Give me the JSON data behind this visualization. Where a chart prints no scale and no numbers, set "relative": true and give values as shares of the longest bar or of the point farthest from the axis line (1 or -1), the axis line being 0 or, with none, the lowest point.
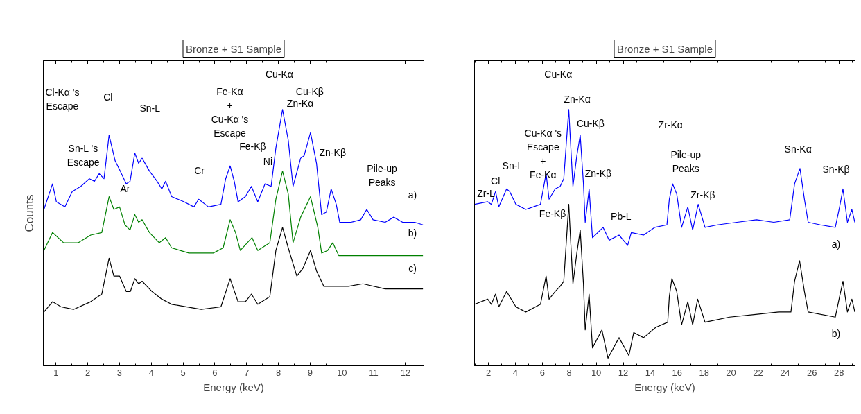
{
  "chart_data": [
    {
      "type": "line",
      "title": "Bronze + S1 Sample",
      "xlabel": "Energy (keV)",
      "ylabel": "Counts",
      "relative": true,
      "xlim": [
        0.6,
        12.58
      ],
      "xticks": [
        1,
        2,
        3,
        4,
        5,
        6,
        7,
        8,
        9,
        10,
        11,
        12
      ],
      "series": [
        {
          "color": "#0000ff",
          "x": [
            0.62,
            0.89,
            1.01,
            1.28,
            1.51,
            1.78,
            2.05,
            2.21,
            2.36,
            2.51,
            2.67,
            2.86,
            3.02,
            3.21,
            3.33,
            3.48,
            3.6,
            3.71,
            3.94,
            4.18,
            4.33,
            4.45,
            4.64,
            5.03,
            5.34,
            5.49,
            5.8,
            6.19,
            6.34,
            6.48,
            6.61,
            6.73,
            6.96,
            7.15,
            7.35,
            7.58,
            7.77,
            7.92,
            8.13,
            8.31,
            8.46,
            8.7,
            8.81,
            9.01,
            9.2,
            9.36,
            9.51,
            9.66,
            9.82,
            9.93,
            10.28,
            10.59,
            10.78,
            10.98,
            11.36,
            11.63,
            11.91,
            12.29,
            12.55
          ],
          "values": [
            0.61,
            0.71,
            0.64,
            0.62,
            0.68,
            0.7,
            0.73,
            0.72,
            0.75,
            0.73,
            0.9,
            0.8,
            0.76,
            0.71,
            0.72,
            0.83,
            0.79,
            0.81,
            0.76,
            0.72,
            0.69,
            0.72,
            0.66,
            0.64,
            0.62,
            0.65,
            0.62,
            0.63,
            0.73,
            0.78,
            0.72,
            0.64,
            0.66,
            0.7,
            0.64,
            0.71,
            0.7,
            0.85,
            1.0,
            0.88,
            0.7,
            0.81,
            0.82,
            0.91,
            0.79,
            0.59,
            0.6,
            0.69,
            0.63,
            0.56,
            0.56,
            0.57,
            0.61,
            0.57,
            0.56,
            0.58,
            0.56,
            0.56,
            0.55
          ]
        },
        {
          "color": "#008000",
          "x": [
            0.62,
            0.89,
            1.24,
            1.7,
            2.09,
            2.44,
            2.67,
            2.82,
            3.0,
            3.17,
            3.33,
            3.48,
            3.6,
            3.71,
            3.94,
            4.25,
            4.45,
            4.64,
            5.18,
            5.95,
            6.26,
            6.48,
            6.65,
            6.8,
            7.17,
            7.35,
            7.73,
            7.92,
            8.13,
            8.31,
            8.46,
            8.7,
            9.01,
            9.24,
            9.36,
            9.55,
            9.71,
            9.9,
            12.55
          ],
          "values": [
            0.45,
            0.52,
            0.48,
            0.48,
            0.51,
            0.52,
            0.66,
            0.61,
            0.62,
            0.55,
            0.53,
            0.59,
            0.56,
            0.57,
            0.52,
            0.48,
            0.5,
            0.46,
            0.44,
            0.44,
            0.46,
            0.57,
            0.52,
            0.45,
            0.5,
            0.45,
            0.48,
            0.65,
            0.76,
            0.67,
            0.48,
            0.58,
            0.66,
            0.54,
            0.44,
            0.45,
            0.48,
            0.43,
            0.43
          ]
        },
        {
          "color": "#000000",
          "x": [
            0.62,
            0.89,
            1.16,
            1.55,
            2.09,
            2.44,
            2.67,
            2.82,
            3.0,
            3.21,
            3.34,
            3.48,
            3.6,
            3.71,
            4.02,
            4.33,
            4.64,
            5.57,
            6.19,
            6.48,
            6.73,
            6.96,
            7.15,
            7.35,
            7.73,
            7.92,
            8.13,
            8.31,
            8.58,
            8.77,
            9.01,
            9.2,
            9.43,
            10.2,
            10.66,
            11.36,
            12.55
          ],
          "values": [
            0.21,
            0.25,
            0.23,
            0.22,
            0.25,
            0.28,
            0.42,
            0.35,
            0.35,
            0.29,
            0.29,
            0.34,
            0.32,
            0.33,
            0.29,
            0.26,
            0.24,
            0.22,
            0.23,
            0.34,
            0.25,
            0.25,
            0.28,
            0.24,
            0.27,
            0.45,
            0.54,
            0.46,
            0.35,
            0.38,
            0.45,
            0.37,
            0.31,
            0.31,
            0.32,
            0.3,
            0.3
          ]
        }
      ],
      "annotations": [
        "Cl-Kα 's\nEscape",
        "Sn-L 's\nEscape",
        "Cl",
        "Sn-L",
        "Ar",
        "Fe-Kα\n+\nCu-Kα 's\nEscape",
        "Cr",
        "Fe-Kβ",
        "Ni",
        "Cu-Kα",
        "Cu-Kβ",
        "Zn-Kα",
        "Zn-Kβ",
        "Pile-up\nPeaks",
        "a)",
        "b)",
        "c)"
      ]
    },
    {
      "type": "line",
      "title": "Bronze + S1 Sample",
      "xlabel": "Energy (keV)",
      "relative": true,
      "xlim": [
        0.97,
        29.2
      ],
      "xticks": [
        2,
        4,
        6,
        8,
        10,
        12,
        14,
        16,
        18,
        20,
        22,
        24,
        26,
        28
      ],
      "series": [
        {
          "color": "#0000ff",
          "x": [
            0.98,
            1.95,
            2.22,
            2.53,
            2.77,
            3.35,
            3.58,
            4.04,
            4.77,
            5.86,
            6.28,
            6.5,
            6.95,
            7.32,
            7.59,
            7.96,
            8.27,
            8.56,
            8.81,
            9.05,
            9.18,
            9.47,
            9.72,
            10.51,
            10.96,
            11.69,
            12.33,
            12.6,
            13.51,
            14.33,
            15.24,
            15.42,
            15.66,
            15.97,
            16.33,
            16.79,
            17.15,
            17.56,
            18.07,
            18.98,
            20.43,
            21.89,
            23.17,
            24.35,
            24.71,
            25.11,
            25.44,
            25.72,
            26.63,
            27.73,
            28.05,
            28.3,
            28.63,
            28.96,
            29.18
          ],
          "values": [
            0.63,
            0.64,
            0.63,
            0.68,
            0.62,
            0.69,
            0.68,
            0.63,
            0.61,
            0.63,
            0.75,
            0.65,
            0.69,
            0.7,
            0.73,
            1.0,
            0.7,
            0.82,
            0.9,
            0.71,
            0.56,
            0.69,
            0.5,
            0.54,
            0.49,
            0.51,
            0.47,
            0.52,
            0.51,
            0.54,
            0.55,
            0.65,
            0.71,
            0.67,
            0.54,
            0.62,
            0.53,
            0.63,
            0.54,
            0.55,
            0.56,
            0.57,
            0.56,
            0.57,
            0.71,
            0.77,
            0.65,
            0.56,
            0.55,
            0.54,
            0.62,
            0.69,
            0.56,
            0.61,
            0.56
          ]
        },
        {
          "color": "#000000",
          "x": [
            0.98,
            1.95,
            2.22,
            2.53,
            2.77,
            3.35,
            3.58,
            4.04,
            4.77,
            5.86,
            6.28,
            6.5,
            6.95,
            7.32,
            7.59,
            7.96,
            8.27,
            8.56,
            8.81,
            9.05,
            9.18,
            9.47,
            9.72,
            10.42,
            10.87,
            11.69,
            12.42,
            12.78,
            13.51,
            14.42,
            15.3,
            15.42,
            15.61,
            15.97,
            16.33,
            16.79,
            17.15,
            17.52,
            18.07,
            19.89,
            21.71,
            23.53,
            24.44,
            24.71,
            25.08,
            25.44,
            25.72,
            27.73,
            28.05,
            28.3,
            28.63,
            28.96,
            29.18
          ],
          "values": [
            0.24,
            0.26,
            0.24,
            0.28,
            0.23,
            0.29,
            0.27,
            0.23,
            0.21,
            0.24,
            0.35,
            0.26,
            0.29,
            0.31,
            0.33,
            0.63,
            0.32,
            0.44,
            0.53,
            0.32,
            0.14,
            0.28,
            0.07,
            0.14,
            0.03,
            0.11,
            0.04,
            0.13,
            0.11,
            0.15,
            0.17,
            0.27,
            0.34,
            0.29,
            0.16,
            0.25,
            0.16,
            0.26,
            0.17,
            0.19,
            0.2,
            0.21,
            0.21,
            0.33,
            0.41,
            0.29,
            0.21,
            0.19,
            0.27,
            0.33,
            0.21,
            0.26,
            0.21
          ]
        }
      ],
      "annotations": [
        "Cu-Kα",
        "Zn-Kα",
        "Cu-Kβ",
        "Cu-Kα 's\nEscape\n+\nFe-Kα",
        "Fe-Kβ",
        "Zr-L",
        "Cl",
        "Sn-L",
        "Zn-Kβ",
        "Zr-Kα",
        "Pile-up\nPeaks",
        "Zr-Kβ",
        "Pb-L",
        "Sn-Kα",
        "Sn-Kβ",
        "a)",
        "b)"
      ]
    }
  ]
}
